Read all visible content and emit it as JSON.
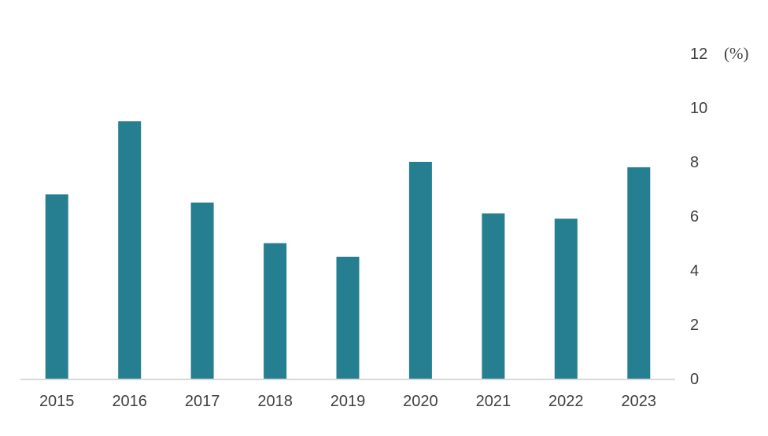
{
  "chart_data": {
    "type": "bar",
    "categories": [
      "2015",
      "2016",
      "2017",
      "2018",
      "2019",
      "2020",
      "2021",
      "2022",
      "2023"
    ],
    "values": [
      6.8,
      9.5,
      6.5,
      5.0,
      4.5,
      8.0,
      6.1,
      5.9,
      7.8
    ],
    "title": "",
    "xlabel": "",
    "ylabel": "",
    "unit_label": "(%)",
    "ylim": [
      0,
      12
    ],
    "yticks": [
      0,
      2,
      4,
      6,
      8,
      10,
      12
    ],
    "y_axis_side": "right",
    "grid": false,
    "legend": "none",
    "bar_color": "#267E91",
    "axis_color": "#D9D9D9",
    "text_color": "#404040"
  }
}
